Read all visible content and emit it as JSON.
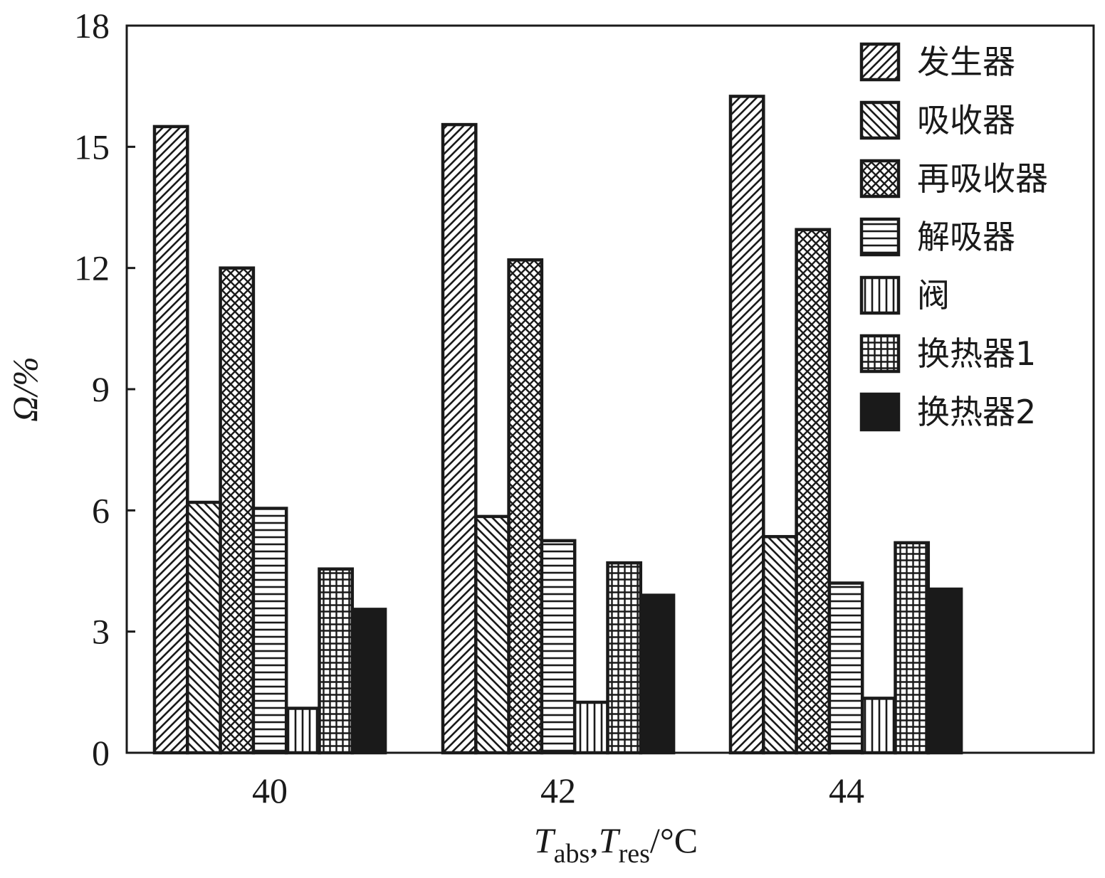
{
  "chart_data": {
    "type": "bar",
    "categories": [
      "40",
      "42",
      "44"
    ],
    "series": [
      {
        "name": "发生器",
        "values": [
          15.5,
          15.55,
          16.25
        ],
        "pattern": "diag-up"
      },
      {
        "name": "吸收器",
        "values": [
          6.2,
          5.85,
          5.35
        ],
        "pattern": "diag-down"
      },
      {
        "name": "再吸收器",
        "values": [
          12.0,
          12.2,
          12.95
        ],
        "pattern": "crosshatch"
      },
      {
        "name": "解吸器",
        "values": [
          6.05,
          5.25,
          4.2
        ],
        "pattern": "horizontal"
      },
      {
        "name": "阀",
        "values": [
          1.1,
          1.25,
          1.35
        ],
        "pattern": "vertical"
      },
      {
        "name": "换热器1",
        "values": [
          4.55,
          4.7,
          5.2
        ],
        "pattern": "grid"
      },
      {
        "name": "换热器2",
        "values": [
          3.55,
          3.9,
          4.05
        ],
        "pattern": "solid"
      }
    ],
    "ylim": [
      0,
      18
    ],
    "yticks": [
      "0",
      "3",
      "6",
      "9",
      "12",
      "15",
      "18"
    ],
    "ylabel": "Ω/%",
    "xlabel": {
      "t1": "T",
      "s1": "abs",
      "sep": ",",
      "t2": "T",
      "s2": "res",
      "unit": "/°C"
    },
    "legend_position": "top-right",
    "grid": false,
    "colors": {
      "ink": "#1a1a1a",
      "background": "#ffffff"
    }
  }
}
